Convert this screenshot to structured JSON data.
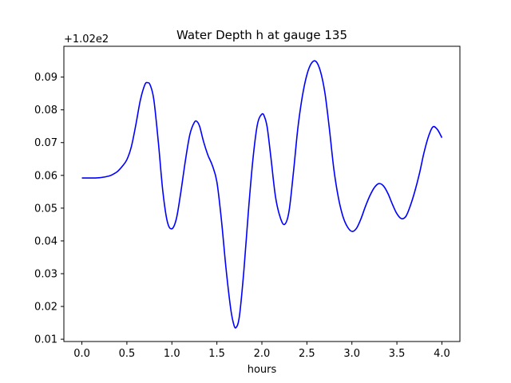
{
  "chart_data": {
    "type": "line",
    "title": "Water Depth h at gauge 135",
    "xlabel": "hours",
    "ylabel": "",
    "offset_label": "+1.02e2",
    "xlim": [
      -0.2,
      4.2
    ],
    "ylim": [
      0.0093,
      0.0994
    ],
    "xticks": [
      0.0,
      0.5,
      1.0,
      1.5,
      2.0,
      2.5,
      3.0,
      3.5,
      4.0
    ],
    "xtick_labels": [
      "0.0",
      "0.5",
      "1.0",
      "1.5",
      "2.0",
      "2.5",
      "3.0",
      "3.5",
      "4.0"
    ],
    "yticks": [
      0.01,
      0.02,
      0.03,
      0.04,
      0.05,
      0.06,
      0.07,
      0.08,
      0.09
    ],
    "ytick_labels": [
      "0.01",
      "0.02",
      "0.03",
      "0.04",
      "0.05",
      "0.06",
      "0.07",
      "0.08",
      "0.09"
    ],
    "grid": false,
    "line_color": "#0000ff",
    "series": [
      {
        "x": [
          0.0,
          0.1,
          0.2,
          0.3,
          0.35,
          0.4,
          0.45,
          0.5,
          0.55,
          0.6,
          0.65,
          0.7,
          0.73,
          0.76,
          0.8,
          0.85,
          0.9,
          0.95,
          1.0,
          1.05,
          1.1,
          1.15,
          1.2,
          1.25,
          1.28,
          1.31,
          1.35,
          1.4,
          1.45,
          1.5,
          1.55,
          1.6,
          1.65,
          1.68,
          1.71,
          1.75,
          1.8,
          1.85,
          1.9,
          1.95,
          2.0,
          2.03,
          2.06,
          2.1,
          2.15,
          2.2,
          2.25,
          2.3,
          2.35,
          2.4,
          2.45,
          2.5,
          2.55,
          2.6,
          2.65,
          2.7,
          2.75,
          2.8,
          2.85,
          2.9,
          2.95,
          3.0,
          3.05,
          3.1,
          3.15,
          3.2,
          3.25,
          3.3,
          3.35,
          3.4,
          3.45,
          3.5,
          3.55,
          3.6,
          3.65,
          3.7,
          3.75,
          3.8,
          3.85,
          3.9,
          3.95,
          4.0
        ],
        "y": [
          0.0592,
          0.0592,
          0.0593,
          0.0598,
          0.0604,
          0.0613,
          0.0628,
          0.0648,
          0.0688,
          0.0755,
          0.083,
          0.0877,
          0.0883,
          0.0875,
          0.083,
          0.07,
          0.055,
          0.0458,
          0.0437,
          0.0468,
          0.055,
          0.0645,
          0.0725,
          0.0762,
          0.0764,
          0.0748,
          0.0705,
          0.0662,
          0.063,
          0.058,
          0.0465,
          0.032,
          0.02,
          0.0153,
          0.0135,
          0.017,
          0.031,
          0.049,
          0.0648,
          0.0755,
          0.0787,
          0.0778,
          0.0745,
          0.0655,
          0.0537,
          0.0475,
          0.045,
          0.0488,
          0.0608,
          0.0745,
          0.0842,
          0.0907,
          0.0942,
          0.0948,
          0.0918,
          0.0852,
          0.0742,
          0.0618,
          0.0532,
          0.0475,
          0.0443,
          0.0429,
          0.0438,
          0.0467,
          0.0505,
          0.0538,
          0.0563,
          0.0575,
          0.0568,
          0.0545,
          0.0512,
          0.0483,
          0.0468,
          0.0475,
          0.0508,
          0.0552,
          0.0605,
          0.0668,
          0.0718,
          0.0748,
          0.074,
          0.0715
        ]
      }
    ]
  }
}
